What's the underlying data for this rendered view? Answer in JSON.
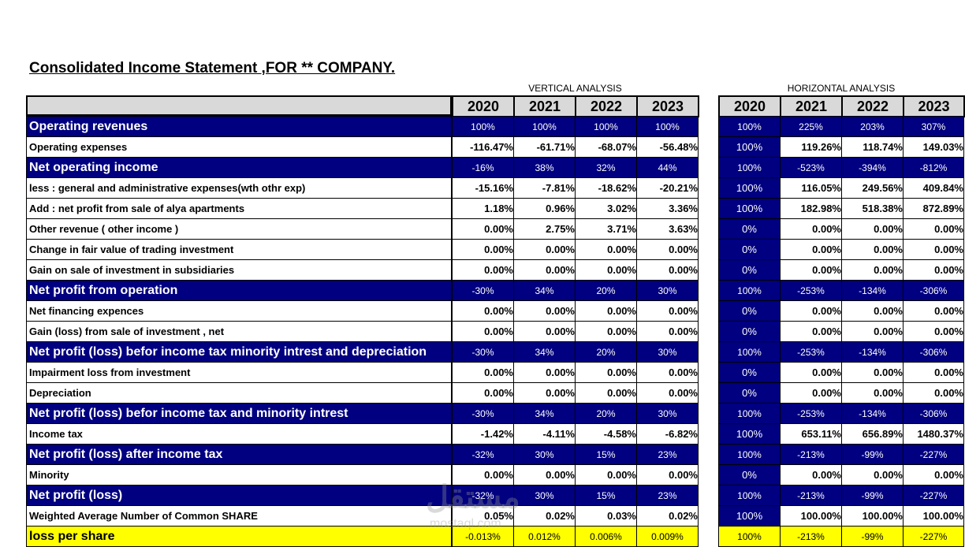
{
  "title": "Consolidated Income Statement ,FOR ** COMPANY.",
  "vertical_label": "VERTICAL ANALYSIS",
  "horizontal_label": "HORIZONTAL ANALYSIS",
  "years": [
    "2020",
    "2021",
    "2022",
    "2023"
  ],
  "watermark": "مستقل",
  "watermark_sub": "mostaql.com",
  "rows": [
    {
      "label": "Operating revenues",
      "style": "hl",
      "va": [
        "100%",
        "100%",
        "100%",
        "100%"
      ],
      "ha": [
        "100%",
        "225%",
        "203%",
        "307%"
      ]
    },
    {
      "label": "Operating expenses",
      "style": "nm",
      "va": [
        "-116.47%",
        "-61.71%",
        "-68.07%",
        "-56.48%"
      ],
      "ha": [
        "100%",
        "119.26%",
        "118.74%",
        "149.03%"
      ]
    },
    {
      "label": "Net operating income",
      "style": "hl",
      "va": [
        "-16%",
        "38%",
        "32%",
        "44%"
      ],
      "ha": [
        "100%",
        "-523%",
        "-394%",
        "-812%"
      ]
    },
    {
      "label": "less : general and administrative expenses(wth othr exp)",
      "style": "nm",
      "va": [
        "-15.16%",
        "-7.81%",
        "-18.62%",
        "-20.21%"
      ],
      "ha": [
        "100%",
        "116.05%",
        "249.56%",
        "409.84%"
      ]
    },
    {
      "label": "Add : net profit from sale of alya apartments",
      "style": "nm",
      "va": [
        "1.18%",
        "0.96%",
        "3.02%",
        "3.36%"
      ],
      "ha": [
        "100%",
        "182.98%",
        "518.38%",
        "872.89%"
      ]
    },
    {
      "label": "Other revenue ( other income )",
      "style": "nm",
      "va": [
        "0.00%",
        "2.75%",
        "3.71%",
        "3.63%"
      ],
      "ha": [
        "0%",
        "0.00%",
        "0.00%",
        "0.00%"
      ]
    },
    {
      "label": "Change in fair value of trading investment",
      "style": "nm",
      "va": [
        "0.00%",
        "0.00%",
        "0.00%",
        "0.00%"
      ],
      "ha": [
        "0%",
        "0.00%",
        "0.00%",
        "0.00%"
      ]
    },
    {
      "label": "Gain on sale of investment in subsidiaries",
      "style": "nm",
      "va": [
        "0.00%",
        "0.00%",
        "0.00%",
        "0.00%"
      ],
      "ha": [
        "0%",
        "0.00%",
        "0.00%",
        "0.00%"
      ]
    },
    {
      "label": "Net profit from operation",
      "style": "hl",
      "va": [
        "-30%",
        "34%",
        "20%",
        "30%"
      ],
      "ha": [
        "100%",
        "-253%",
        "-134%",
        "-306%"
      ]
    },
    {
      "label": "Net financing expences",
      "style": "nm",
      "va": [
        "0.00%",
        "0.00%",
        "0.00%",
        "0.00%"
      ],
      "ha": [
        "0%",
        "0.00%",
        "0.00%",
        "0.00%"
      ]
    },
    {
      "label": "Gain (loss) from sale of investment , net",
      "style": "nm",
      "va": [
        "0.00%",
        "0.00%",
        "0.00%",
        "0.00%"
      ],
      "ha": [
        "0%",
        "0.00%",
        "0.00%",
        "0.00%"
      ]
    },
    {
      "label": "Net profit (loss) befor income tax minority intrest and depreciation",
      "style": "hl",
      "va": [
        "-30%",
        "34%",
        "20%",
        "30%"
      ],
      "ha": [
        "100%",
        "-253%",
        "-134%",
        "-306%"
      ]
    },
    {
      "label": "Impairment loss from investment",
      "style": "nm",
      "va": [
        "0.00%",
        "0.00%",
        "0.00%",
        "0.00%"
      ],
      "ha": [
        "0%",
        "0.00%",
        "0.00%",
        "0.00%"
      ]
    },
    {
      "label": "Depreciation",
      "style": "nm",
      "va": [
        "0.00%",
        "0.00%",
        "0.00%",
        "0.00%"
      ],
      "ha": [
        "0%",
        "0.00%",
        "0.00%",
        "0.00%"
      ]
    },
    {
      "label": "Net profit (loss) befor income tax and minority intrest",
      "style": "hl",
      "va": [
        "-30%",
        "34%",
        "20%",
        "30%"
      ],
      "ha": [
        "100%",
        "-253%",
        "-134%",
        "-306%"
      ]
    },
    {
      "label": "Income tax",
      "style": "nm",
      "va": [
        "-1.42%",
        "-4.11%",
        "-4.58%",
        "-6.82%"
      ],
      "ha": [
        "100%",
        "653.11%",
        "656.89%",
        "1480.37%"
      ]
    },
    {
      "label": "Net profit (loss) after income tax",
      "style": "hl",
      "va": [
        "-32%",
        "30%",
        "15%",
        "23%"
      ],
      "ha": [
        "100%",
        "-213%",
        "-99%",
        "-227%"
      ]
    },
    {
      "label": "Minority",
      "style": "nm",
      "va": [
        "0.00%",
        "0.00%",
        "0.00%",
        "0.00%"
      ],
      "ha": [
        "0%",
        "0.00%",
        "0.00%",
        "0.00%"
      ]
    },
    {
      "label": "Net profit (loss)",
      "style": "hl",
      "va": [
        "-32%",
        "30%",
        "15%",
        "23%"
      ],
      "ha": [
        "100%",
        "-213%",
        "-99%",
        "-227%"
      ]
    },
    {
      "label": "Weighted Average Number of Common SHARE",
      "style": "nm",
      "va": [
        "0.05%",
        "0.02%",
        "0.03%",
        "0.02%"
      ],
      "ha": [
        "100%",
        "100.00%",
        "100.00%",
        "100.00%"
      ]
    },
    {
      "label": "loss per share",
      "style": "yl",
      "va": [
        "-0.013%",
        "0.012%",
        "0.006%",
        "0.009%"
      ],
      "ha": [
        "100%",
        "-213%",
        "-99%",
        "-227%"
      ]
    }
  ]
}
